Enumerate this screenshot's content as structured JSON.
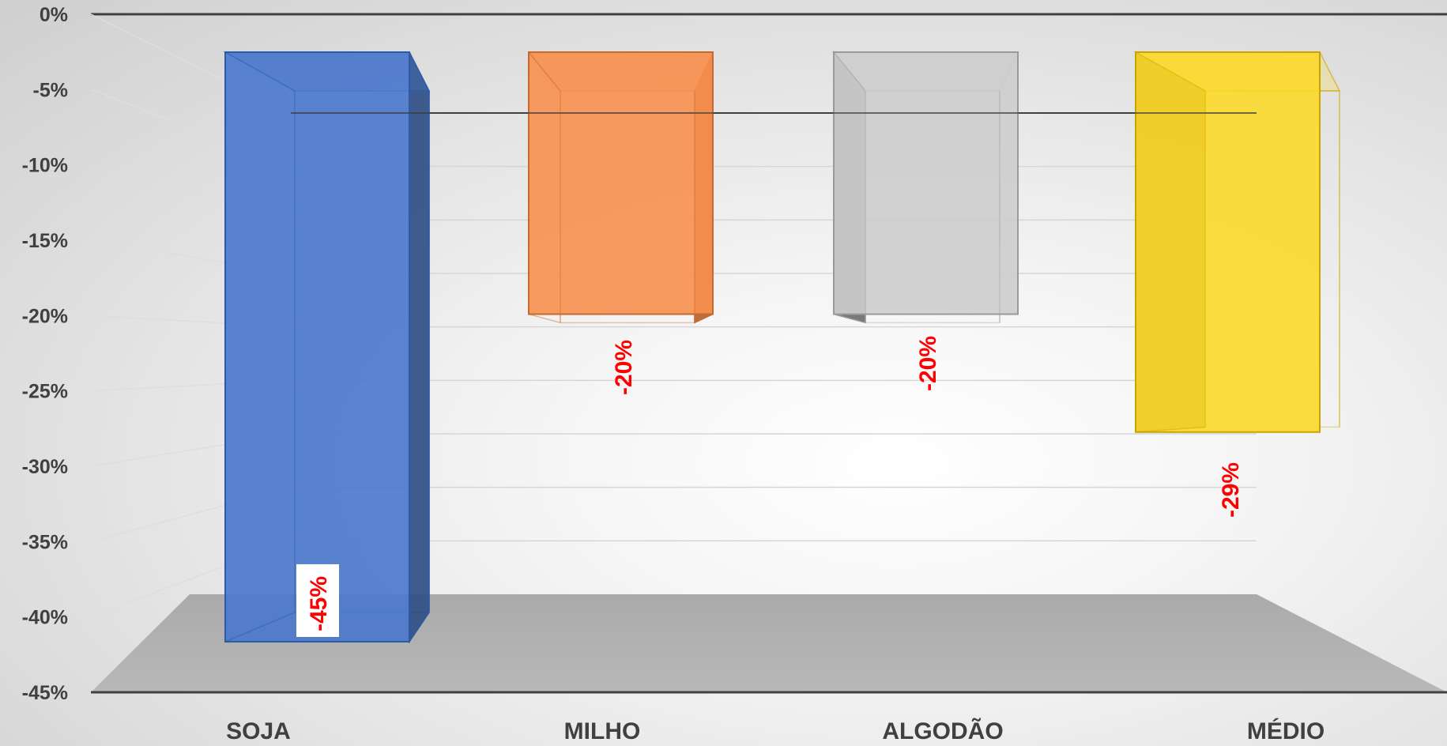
{
  "chart_data": {
    "type": "bar",
    "categories": [
      "SOJA",
      "MILHO",
      "ALGODÃO",
      "MÉDIO"
    ],
    "values": [
      -45,
      -20,
      -20,
      -29
    ],
    "data_labels": [
      "-45%",
      "-20%",
      "-20%",
      "-29%"
    ],
    "ylim": [
      -45,
      0
    ],
    "yticks": [
      "0%",
      "-5%",
      "-10%",
      "-15%",
      "-20%",
      "-25%",
      "-30%",
      "-35%",
      "-40%",
      "-45%"
    ],
    "grid": true,
    "style": "3d-column",
    "label_color": "#ff0000",
    "colors": [
      {
        "front": "#4a78cc",
        "side": "#2f4f86",
        "edge": "#2c5aa8"
      },
      {
        "front": "#f7904f",
        "side": "#b8612c",
        "edge": "#c86a2e"
      },
      {
        "front": "#cdcdcd",
        "side": "#6e6e6e",
        "edge": "#9a9a9a"
      },
      {
        "front": "#fbd92a",
        "side": "#7a6222",
        "edge": "#c9a400"
      }
    ]
  }
}
